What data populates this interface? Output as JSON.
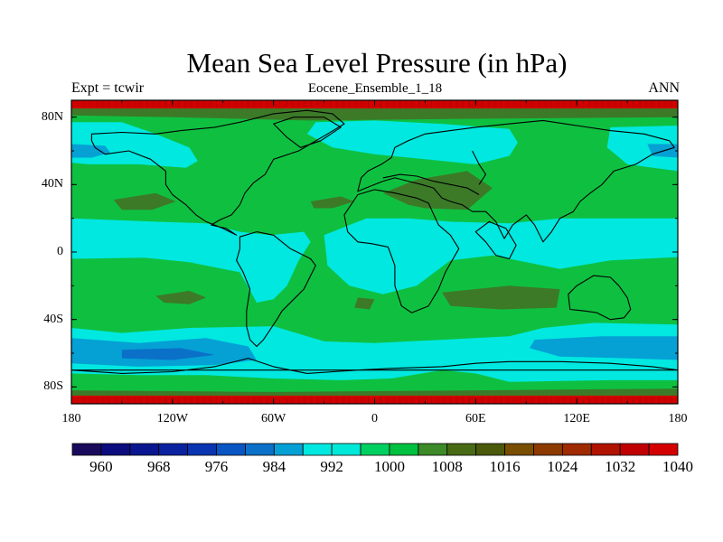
{
  "title": "Mean Sea Level Pressure (in hPa)",
  "left_label": "Expt = tcwir",
  "center_label": "Eocene_Ensemble_1_18",
  "right_label": "ANN",
  "lat_ticks": [
    {
      "label": "80N",
      "lat": 80
    },
    {
      "label": "40N",
      "lat": 40
    },
    {
      "label": "0",
      "lat": 0
    },
    {
      "label": "40S",
      "lat": -40
    },
    {
      "label": "80S",
      "lat": -80
    }
  ],
  "lon_ticks": [
    {
      "label": "180",
      "lon": -180
    },
    {
      "label": "120W",
      "lon": -120
    },
    {
      "label": "60W",
      "lon": -60
    },
    {
      "label": "0",
      "lon": 0
    },
    {
      "label": "60E",
      "lon": 60
    },
    {
      "label": "120E",
      "lon": 120
    },
    {
      "label": "180",
      "lon": 180
    }
  ],
  "colorbar": {
    "colors": [
      "#1a0a5c",
      "#0c0c7e",
      "#0a1690",
      "#0a22a0",
      "#0a35b0",
      "#0a55c4",
      "#0a70c8",
      "#05a0d4",
      "#00e8e0",
      "#00e8d8",
      "#00d060",
      "#00c040",
      "#3c8a28",
      "#486a14",
      "#4a5a0a",
      "#7a4e00",
      "#8c3a00",
      "#a02a00",
      "#b01400",
      "#c00000",
      "#d40000"
    ],
    "labels": [
      "960",
      "968",
      "976",
      "984",
      "992",
      "1000",
      "1008",
      "1016",
      "1024",
      "1032",
      "1040"
    ]
  },
  "colors": {
    "polar_band": "#d00000",
    "background": "#0fc040",
    "light_cyan": "#00e8e0",
    "mid_blue": "#05a0d4",
    "deep_blue": "#0a70c8",
    "olive": "#3c7a28",
    "coast": "#000000"
  }
}
